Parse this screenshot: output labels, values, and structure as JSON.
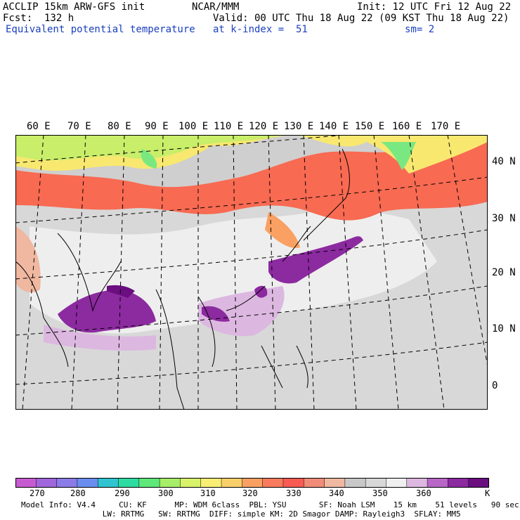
{
  "header": {
    "line1_left": "ACCLIP 15km ARW-GFS init",
    "line1_center": "NCAR/MMM",
    "line1_right": "Init: 12 UTC Fri 12 Aug 22",
    "line2_left": "Fcst:  132 h",
    "line2_right": "Valid: 00 UTC Thu 18 Aug 22 (09 KST Thu 18 Aug 22)",
    "line3_left": "Equivalent potential temperature",
    "line3_center": "at k-index =  51",
    "line3_right": "sm= 2"
  },
  "map": {
    "lon_labels": [
      "60 E",
      "70 E",
      "80 E",
      "90 E",
      "100 E",
      "110 E",
      "120 E",
      "130 E",
      "140 E",
      "150 E",
      "160 E",
      "170 E"
    ],
    "lat_labels": [
      "40 N",
      "30 N",
      "20 N",
      "10 N",
      "0"
    ]
  },
  "colorbar": {
    "colors": [
      "#c65bd1",
      "#a066dc",
      "#8a7be6",
      "#6a8ef0",
      "#2fc4d0",
      "#2ddca0",
      "#5ee87a",
      "#a6ee6a",
      "#d8f26a",
      "#f8ee74",
      "#f9cf6a",
      "#f9a062",
      "#f97a5c",
      "#f85b52",
      "#f08c78",
      "#f0b8a0",
      "#c8c8c8",
      "#d8d8d8",
      "#f0f0f0",
      "#dcb8e0",
      "#b866c8",
      "#8c2aa0",
      "#6a0e80"
    ],
    "labels": [
      "270",
      "280",
      "290",
      "300",
      "310",
      "320",
      "330",
      "340",
      "350",
      "360",
      "K"
    ]
  },
  "footer": {
    "line1": "Model Info: V4.4     CU: KF      MP: WDM 6class  PBL: YSU       SF: Noah LSM    15 km    51 levels   90 sec",
    "line2": "                      LW: RRTMG   SW: RRTMG  DIFF: simple KM: 2D Smagor DAMP: Rayleigh3  SFLAY: MM5"
  }
}
